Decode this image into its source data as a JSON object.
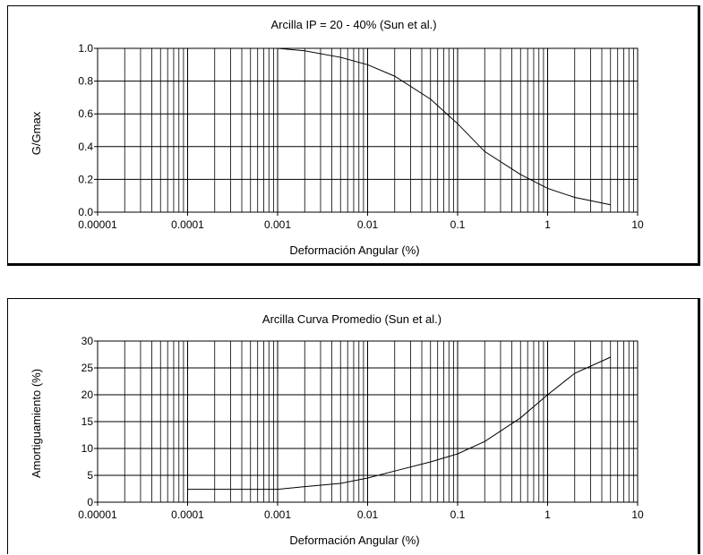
{
  "chart_data": [
    {
      "type": "line",
      "title": "Arcilla IP = 20 - 40% (Sun et al.)",
      "xlabel": "Deformación Angular (%)",
      "ylabel": "G/Gmax",
      "xscale": "log",
      "xlim": [
        1e-05,
        10
      ],
      "ylim": [
        0,
        1
      ],
      "x_ticks": [
        "0.00001",
        "0.0001",
        "0.001",
        "0.01",
        "0.1",
        "1",
        "10"
      ],
      "y_ticks": [
        "0.0",
        "0.2",
        "0.4",
        "0.6",
        "0.8",
        "1.0"
      ],
      "y_tick_values": [
        0,
        0.2,
        0.4,
        0.6,
        0.8,
        1.0
      ],
      "grid": true,
      "series": [
        {
          "x": [
            0.001,
            0.002,
            0.005,
            0.01,
            0.02,
            0.05,
            0.1,
            0.2,
            0.5,
            1,
            2,
            5
          ],
          "y": [
            1.0,
            0.985,
            0.945,
            0.9,
            0.83,
            0.69,
            0.54,
            0.37,
            0.23,
            0.145,
            0.09,
            0.045
          ]
        }
      ]
    },
    {
      "type": "line",
      "title": "Arcilla Curva Promedio (Sun et al.)",
      "xlabel": "Deformación Angular (%)",
      "ylabel": "Amortiguamiento (%)",
      "xscale": "log",
      "xlim": [
        1e-05,
        10
      ],
      "ylim": [
        0,
        30
      ],
      "x_ticks": [
        "0.00001",
        "0.0001",
        "0.001",
        "0.01",
        "0.1",
        "1",
        "10"
      ],
      "y_ticks": [
        "0",
        "5",
        "10",
        "15",
        "20",
        "25",
        "30"
      ],
      "y_tick_values": [
        0,
        5,
        10,
        15,
        20,
        25,
        30
      ],
      "grid": true,
      "series": [
        {
          "x": [
            0.0001,
            0.0002,
            0.0005,
            0.001,
            0.002,
            0.005,
            0.01,
            0.02,
            0.05,
            0.1,
            0.2,
            0.5,
            1,
            2,
            5
          ],
          "y": [
            2.4,
            2.4,
            2.4,
            2.4,
            2.9,
            3.5,
            4.5,
            5.8,
            7.5,
            9.0,
            11.3,
            15.7,
            20.0,
            24.0,
            27.0
          ]
        }
      ]
    }
  ]
}
